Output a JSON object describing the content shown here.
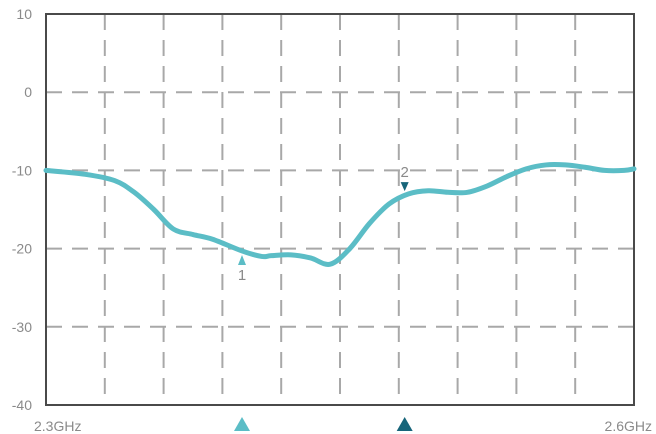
{
  "chart_data": {
    "type": "line",
    "x_labels": [
      "2.3GHz",
      "2.6GHz"
    ],
    "xlim": [
      2.3,
      2.6
    ],
    "ylim": [
      -40,
      10
    ],
    "y_ticks": [
      10,
      0,
      -10,
      -20,
      -30,
      -40
    ],
    "grid": true,
    "colors": {
      "series": "#5bbdc6",
      "marker_1": "#5bbdc6",
      "marker_2": "#17657a",
      "grid": "#a8a8a8",
      "axis": "#4a4a4a"
    },
    "series": [
      {
        "x": [
          2.3,
          2.32,
          2.335,
          2.345,
          2.355,
          2.365,
          2.375,
          2.385,
          2.4,
          2.41,
          2.415,
          2.425,
          2.435,
          2.445,
          2.455,
          2.465,
          2.475,
          2.485,
          2.495,
          2.505,
          2.515,
          2.525,
          2.535,
          2.545,
          2.555,
          2.565,
          2.575,
          2.585,
          2.595,
          2.6
        ],
        "y": [
          -10,
          -10.5,
          -11.3,
          -12.8,
          -15,
          -17.5,
          -18.2,
          -18.8,
          -20.3,
          -21,
          -20.9,
          -20.8,
          -21.2,
          -22,
          -20,
          -16.8,
          -14.3,
          -13,
          -12.6,
          -12.8,
          -12.8,
          -12,
          -10.8,
          -9.8,
          -9.3,
          -9.3,
          -9.6,
          -10,
          -10,
          -9.8
        ]
      }
    ],
    "markers": [
      {
        "label": "1",
        "x": 2.4,
        "y": -20.3,
        "direction": "up"
      },
      {
        "label": "2",
        "x": 2.483,
        "y": -12.9,
        "direction": "down"
      }
    ]
  }
}
